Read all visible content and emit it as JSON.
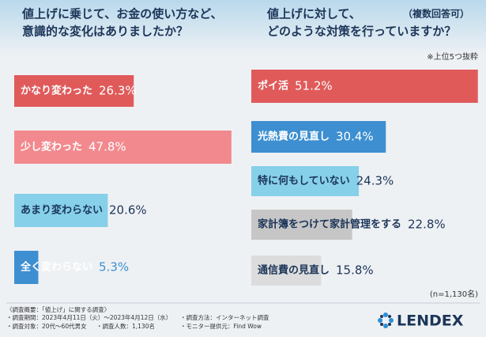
{
  "chart_data": [
    {
      "type": "bar",
      "orientation": "horizontal",
      "title": [
        "値上げに乗じて、お金の使い方など、",
        "意識的な変化はありましたか？"
      ],
      "categories": [
        "かなり変わった",
        "少し変わった",
        "あまり変わらない",
        "全く変わらない"
      ],
      "values": [
        26.3,
        47.8,
        20.6,
        5.3
      ],
      "value_labels": [
        "26.3%",
        "47.8%",
        "20.6%",
        "5.3%"
      ],
      "colors": [
        "#e05a5a",
        "#f2898e",
        "#86d0ea",
        "#3d8fd1"
      ]
    },
    {
      "type": "bar",
      "orientation": "horizontal",
      "title": [
        "値上げに対して、",
        "どのような対策を行っていますか？"
      ],
      "subtitle": "（複数回答可）",
      "note": "※上位5つ抜粋",
      "categories": [
        "ポイ活",
        "光熱費の見直し",
        "特に何もしていない",
        "家計簿をつけて家計管理をする",
        "通信費の見直し"
      ],
      "values": [
        51.2,
        30.4,
        24.3,
        22.8,
        15.8
      ],
      "value_labels": [
        "51.2%",
        "30.4%",
        "24.3%",
        "22.8%",
        "15.8%"
      ],
      "colors": [
        "#e05a5a",
        "#3d8fd1",
        "#86d0ea",
        "#c6c6c6",
        "#dcdcdc"
      ],
      "sample_size": "(n=1,130名)"
    }
  ],
  "footer": {
    "heading": "〈調査概要：「値上げ」に関する調査〉",
    "items": [
      "・調査期間：2023年4月11日（火）～2023年4月12日（水）",
      "・調査方法：インターネット調査",
      "・調査対象：20代～60代男女",
      "・調査人数：1,130名",
      "・モニター提供元：Find Wow"
    ],
    "logo": "LENDEX"
  }
}
